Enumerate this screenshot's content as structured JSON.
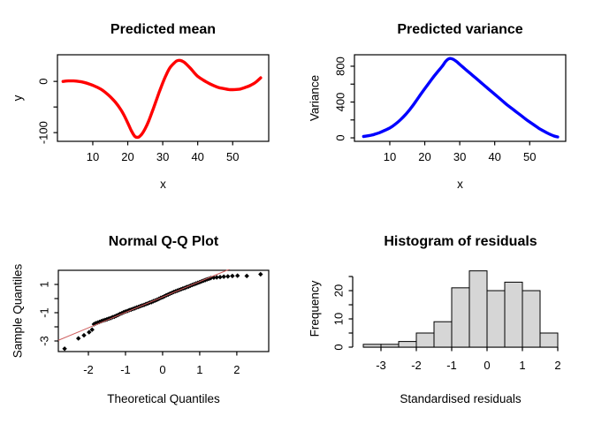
{
  "device": {
    "description": "R graphics device, 2x2 plot grid",
    "background": "#ffffff"
  },
  "colors": {
    "frame": "#000000",
    "mean_curve": "#ff0000",
    "variance_curve": "#0000ff",
    "qq_points": "#000000",
    "qq_line": "#cd5c5c",
    "hist_fill": "#d6d6d6",
    "hist_stroke": "#000000"
  },
  "chart_data": [
    {
      "id": "predicted-mean",
      "type": "line",
      "title": "Predicted mean",
      "xlabel": "x",
      "ylabel": "y",
      "color": "#ff0000",
      "line_width": 3.4,
      "xlim": [
        -0.1,
        60.3
      ],
      "ylim": [
        -117,
        52
      ],
      "xticks": {
        "values": [
          10,
          20,
          30,
          40,
          50
        ],
        "labels": [
          "10",
          "20",
          "30",
          "40",
          "50"
        ]
      },
      "yticks": {
        "values": [
          -100,
          -50,
          0
        ],
        "labels": [
          "-100",
          "",
          "0"
        ]
      },
      "x": [
        1.5,
        3,
        4.5,
        6,
        7.5,
        9,
        10.5,
        12,
        13.5,
        15,
        16.5,
        18,
        19,
        20,
        21,
        22,
        23,
        24,
        25,
        26,
        27,
        28,
        29,
        30,
        31,
        32,
        33,
        34,
        35,
        36,
        37,
        38,
        39,
        40,
        41.5,
        43,
        44.5,
        46,
        47.5,
        49,
        50.5,
        52,
        53.5,
        55,
        56.5,
        58
      ],
      "y": [
        0,
        1,
        1,
        0,
        -2,
        -5,
        -9,
        -14,
        -21,
        -30,
        -41,
        -55,
        -67,
        -81,
        -96,
        -107,
        -109,
        -103,
        -92,
        -77,
        -59,
        -40,
        -21,
        -3,
        13,
        26,
        34,
        40,
        41,
        38,
        32,
        25,
        17,
        10,
        3,
        -3,
        -8,
        -12,
        -14,
        -16,
        -16,
        -15,
        -12,
        -8,
        -2,
        7
      ]
    },
    {
      "id": "predicted-variance",
      "type": "line",
      "title": "Predicted variance",
      "xlabel": "x",
      "ylabel": "Variance",
      "color": "#0000ff",
      "line_width": 3.4,
      "xlim": [
        -0.1,
        60.3
      ],
      "ylim": [
        -39,
        928
      ],
      "xticks": {
        "values": [
          10,
          20,
          30,
          40,
          50
        ],
        "labels": [
          "10",
          "20",
          "30",
          "40",
          "50"
        ]
      },
      "yticks": {
        "values": [
          0,
          200,
          400,
          600,
          800
        ],
        "labels": [
          "0",
          "",
          "400",
          "",
          "800"
        ]
      },
      "x": [
        2.5,
        4,
        5.5,
        7,
        8.5,
        10,
        11.5,
        13,
        14.5,
        16,
        17.5,
        19,
        20.5,
        22,
        23.5,
        25,
        26,
        27,
        28,
        29,
        30,
        31.5,
        33,
        34.5,
        36,
        37.5,
        39,
        40.5,
        42,
        43.5,
        45,
        46.5,
        48,
        49.5,
        51,
        52.5,
        54,
        55.5,
        57,
        58
      ],
      "y": [
        15,
        24,
        38,
        57,
        82,
        110,
        150,
        200,
        260,
        330,
        410,
        495,
        575,
        655,
        730,
        800,
        855,
        885,
        880,
        855,
        820,
        770,
        720,
        670,
        620,
        570,
        520,
        470,
        420,
        370,
        325,
        280,
        235,
        190,
        150,
        110,
        75,
        45,
        20,
        10
      ]
    },
    {
      "id": "normal-qq",
      "type": "scatter",
      "title": "Normal Q-Q Plot",
      "xlabel": "Theoretical Quantiles",
      "ylabel": "Sample Quantiles",
      "point_color": "#000000",
      "point_size": 2.7,
      "xlim": [
        -2.81,
        2.86
      ],
      "ylim": [
        -3.75,
        2.0
      ],
      "xticks": {
        "values": [
          -2,
          -1,
          0,
          1,
          2
        ],
        "labels": [
          "-2",
          "-1",
          "0",
          "1",
          "2"
        ]
      },
      "yticks": {
        "values": [
          -3,
          -2,
          -1,
          0,
          1
        ],
        "labels": [
          "-3",
          "",
          "-1",
          "",
          "1"
        ]
      },
      "refline": {
        "slope": 1.09,
        "intercept": 0.11,
        "color": "#cd5c5c",
        "width": 1
      },
      "points": [
        [
          -2.64,
          -3.55
        ],
        [
          -2.27,
          -2.82
        ],
        [
          -2.12,
          -2.6
        ],
        [
          -1.98,
          -2.38
        ],
        [
          -1.9,
          -2.2
        ],
        [
          -1.85,
          -1.81
        ],
        [
          -1.8,
          -1.75
        ],
        [
          -1.75,
          -1.7
        ],
        [
          -1.7,
          -1.65
        ],
        [
          -1.65,
          -1.6
        ],
        [
          -1.6,
          -1.55
        ],
        [
          -1.55,
          -1.51
        ],
        [
          -1.5,
          -1.47
        ],
        [
          -1.45,
          -1.42
        ],
        [
          -1.4,
          -1.38
        ],
        [
          -1.35,
          -1.32
        ],
        [
          -1.3,
          -1.28
        ],
        [
          -1.25,
          -1.22
        ],
        [
          -1.2,
          -1.16
        ],
        [
          -1.15,
          -1.09
        ],
        [
          -1.1,
          -1.04
        ],
        [
          -1.05,
          -0.97
        ],
        [
          -1.0,
          -0.92
        ],
        [
          -0.95,
          -0.88
        ],
        [
          -0.9,
          -0.82
        ],
        [
          -0.85,
          -0.78
        ],
        [
          -0.8,
          -0.73
        ],
        [
          -0.75,
          -0.69
        ],
        [
          -0.7,
          -0.63
        ],
        [
          -0.65,
          -0.59
        ],
        [
          -0.6,
          -0.54
        ],
        [
          -0.55,
          -0.49
        ],
        [
          -0.5,
          -0.45
        ],
        [
          -0.45,
          -0.39
        ],
        [
          -0.4,
          -0.35
        ],
        [
          -0.35,
          -0.29
        ],
        [
          -0.3,
          -0.25
        ],
        [
          -0.25,
          -0.19
        ],
        [
          -0.2,
          -0.14
        ],
        [
          -0.15,
          -0.08
        ],
        [
          -0.1,
          -0.02
        ],
        [
          -0.05,
          0.05
        ],
        [
          0.0,
          0.1
        ],
        [
          0.05,
          0.16
        ],
        [
          0.1,
          0.23
        ],
        [
          0.15,
          0.28
        ],
        [
          0.2,
          0.35
        ],
        [
          0.25,
          0.4
        ],
        [
          0.3,
          0.46
        ],
        [
          0.35,
          0.51
        ],
        [
          0.4,
          0.56
        ],
        [
          0.45,
          0.61
        ],
        [
          0.5,
          0.66
        ],
        [
          0.55,
          0.71
        ],
        [
          0.6,
          0.75
        ],
        [
          0.65,
          0.81
        ],
        [
          0.7,
          0.85
        ],
        [
          0.75,
          0.91
        ],
        [
          0.8,
          0.96
        ],
        [
          0.85,
          1.01
        ],
        [
          0.9,
          1.06
        ],
        [
          0.95,
          1.11
        ],
        [
          1.0,
          1.16
        ],
        [
          1.05,
          1.21
        ],
        [
          1.1,
          1.26
        ],
        [
          1.15,
          1.31
        ],
        [
          1.2,
          1.36
        ],
        [
          1.25,
          1.4
        ],
        [
          1.3,
          1.45
        ],
        [
          1.38,
          1.48
        ],
        [
          1.46,
          1.5
        ],
        [
          1.55,
          1.52
        ],
        [
          1.65,
          1.55
        ],
        [
          1.76,
          1.57
        ],
        [
          1.88,
          1.6
        ],
        [
          2.02,
          1.62
        ],
        [
          2.27,
          1.6
        ],
        [
          2.64,
          1.72
        ]
      ]
    },
    {
      "id": "residual-histogram",
      "type": "histogram",
      "title": "Histogram of residuals",
      "xlabel": "Standardised residuals",
      "ylabel": "Frequency",
      "fill": "#d6d6d6",
      "stroke": "#000000",
      "xlim": [
        -3.5,
        2.0
      ],
      "ylim": [
        0,
        27.2
      ],
      "breaks": [
        -3.5,
        -3,
        -2.5,
        -2,
        -1.5,
        -1,
        -0.5,
        0,
        0.5,
        1,
        1.5,
        2
      ],
      "counts": [
        1,
        1,
        2,
        5,
        9,
        21,
        27,
        20,
        23,
        20,
        5
      ],
      "xticks": {
        "values": [
          -3,
          -2,
          -1,
          0,
          1,
          2
        ],
        "labels": [
          "-3",
          "-2",
          "-1",
          "0",
          "1",
          "2"
        ]
      },
      "yticks": {
        "values": [
          0,
          5,
          10,
          15,
          20,
          25
        ],
        "labels": [
          "0",
          "",
          "10",
          "",
          "20",
          ""
        ]
      }
    }
  ]
}
